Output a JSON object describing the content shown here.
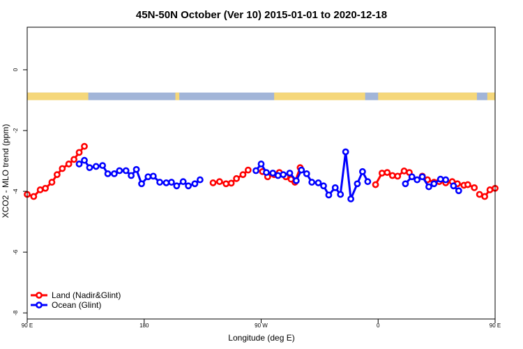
{
  "chart_data": {
    "type": "line",
    "title": "45N-50N October (Ver 10)   2015-01-01 to 2020-12-18",
    "xlabel": "Longitude (deg E)",
    "ylabel": "XCO2 - MLO trend (ppm)",
    "xlim": [
      90,
      450
    ],
    "ylim": [
      -8.2,
      1.4
    ],
    "x_ticks": [
      {
        "value": 90,
        "label": "90 E"
      },
      {
        "value": 180,
        "label": "180"
      },
      {
        "value": 270,
        "label": "90 W"
      },
      {
        "value": 360,
        "label": "0"
      },
      {
        "value": 450,
        "label": "90 E"
      },
      {
        "value": 540,
        "label": "180"
      }
    ],
    "y_ticks": [
      {
        "value": 0,
        "label": "0"
      },
      {
        "value": -2,
        "label": "-2"
      },
      {
        "value": -4,
        "label": "-4"
      },
      {
        "value": -6,
        "label": "-6"
      },
      {
        "value": -8,
        "label": "-8"
      }
    ],
    "surface_band": {
      "y_range": [
        -1.0,
        -0.75
      ],
      "ocean_color": "#A2B5D8",
      "land_color": "#F5D77A",
      "land_segments": [
        [
          90,
          133
        ],
        [
          130,
          137
        ],
        [
          204,
          207
        ],
        [
          280,
          350
        ],
        [
          360,
          436
        ],
        [
          444,
          450
        ]
      ]
    },
    "legend": {
      "position": "bottom-left"
    },
    "series": [
      {
        "name": "Land (Nadir&Glint)",
        "color": "#FF0000",
        "segments": [
          [
            [
              90,
              -4.1
            ],
            [
              95,
              -4.17
            ],
            [
              100,
              -3.95
            ],
            [
              104,
              -3.9
            ],
            [
              109,
              -3.7
            ],
            [
              113,
              -3.45
            ],
            [
              117,
              -3.25
            ],
            [
              122,
              -3.1
            ],
            [
              126,
              -2.95
            ],
            [
              130,
              -2.72
            ],
            [
              134,
              -2.52
            ]
          ],
          [
            [
              233,
              -3.72
            ],
            [
              238,
              -3.68
            ],
            [
              243,
              -3.75
            ],
            [
              247,
              -3.73
            ],
            [
              251,
              -3.58
            ],
            [
              256,
              -3.45
            ],
            [
              260,
              -3.3
            ]
          ],
          [
            [
              271,
              -3.35
            ],
            [
              275,
              -3.52
            ],
            [
              280,
              -3.45
            ],
            [
              284,
              -3.38
            ],
            [
              289,
              -3.52
            ],
            [
              293,
              -3.6
            ],
            [
              296,
              -3.7
            ],
            [
              300,
              -3.22
            ]
          ],
          [
            [
              358,
              -3.78
            ],
            [
              363,
              -3.4
            ],
            [
              367,
              -3.38
            ],
            [
              371,
              -3.48
            ],
            [
              375,
              -3.5
            ],
            [
              380,
              -3.33
            ],
            [
              384,
              -3.38
            ]
          ],
          [
            [
              394,
              -3.5
            ],
            [
              398,
              -3.62
            ],
            [
              403,
              -3.7
            ],
            [
              407,
              -3.68
            ],
            [
              412,
              -3.72
            ],
            [
              417,
              -3.68
            ],
            [
              421,
              -3.75
            ],
            [
              426,
              -3.8
            ],
            [
              429,
              -3.78
            ],
            [
              434,
              -3.88
            ]
          ],
          [
            [
              438,
              -4.1
            ],
            [
              442,
              -4.17
            ],
            [
              446,
              -3.95
            ],
            [
              450,
              -3.9
            ]
          ]
        ]
      },
      {
        "name": "Ocean (Glint)",
        "color": "#0000FF",
        "segments": [
          [
            [
              130,
              -3.1
            ],
            [
              134,
              -2.98
            ],
            [
              138,
              -3.22
            ],
            [
              143,
              -3.18
            ],
            [
              148,
              -3.15
            ],
            [
              152,
              -3.42
            ],
            [
              157,
              -3.42
            ],
            [
              161,
              -3.32
            ],
            [
              166,
              -3.32
            ],
            [
              170,
              -3.48
            ],
            [
              174,
              -3.28
            ],
            [
              178,
              -3.75
            ],
            [
              183,
              -3.52
            ],
            [
              187,
              -3.5
            ],
            [
              192,
              -3.7
            ],
            [
              197,
              -3.72
            ],
            [
              201,
              -3.7
            ],
            [
              205,
              -3.82
            ],
            [
              210,
              -3.68
            ],
            [
              214,
              -3.82
            ],
            [
              219,
              -3.75
            ],
            [
              223,
              -3.62
            ]
          ],
          [
            [
              266,
              -3.32
            ],
            [
              270,
              -3.1
            ],
            [
              274,
              -3.38
            ],
            [
              279,
              -3.4
            ],
            [
              283,
              -3.48
            ],
            [
              287,
              -3.45
            ],
            [
              292,
              -3.4
            ],
            [
              297,
              -3.65
            ],
            [
              301,
              -3.3
            ],
            [
              305,
              -3.42
            ],
            [
              309,
              -3.7
            ],
            [
              314,
              -3.72
            ],
            [
              318,
              -3.82
            ],
            [
              322,
              -4.12
            ],
            [
              327,
              -3.88
            ],
            [
              331,
              -4.1
            ],
            [
              335,
              -2.7
            ],
            [
              339,
              -4.25
            ],
            [
              344,
              -3.75
            ],
            [
              348,
              -3.35
            ],
            [
              352,
              -3.68
            ]
          ],
          [
            [
              381,
              -3.75
            ],
            [
              386,
              -3.52
            ],
            [
              390,
              -3.62
            ],
            [
              394,
              -3.52
            ],
            [
              399,
              -3.85
            ],
            [
              403,
              -3.75
            ],
            [
              408,
              -3.6
            ],
            [
              412,
              -3.62
            ]
          ],
          [
            [
              418,
              -3.82
            ],
            [
              422,
              -3.98
            ]
          ]
        ]
      }
    ]
  }
}
